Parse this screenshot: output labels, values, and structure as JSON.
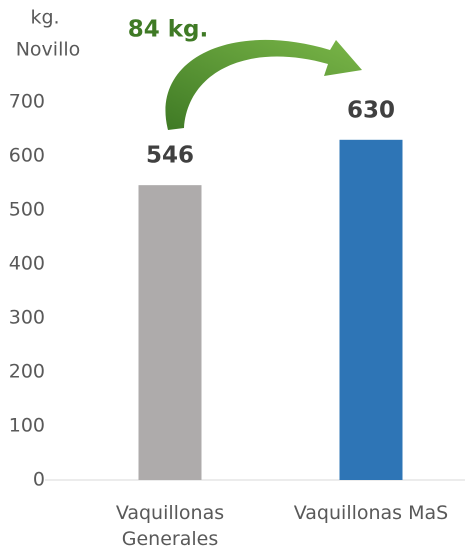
{
  "chart_data": {
    "type": "bar",
    "y_label": [
      "kg.",
      "Novillo"
    ],
    "annotation": "84 kg.",
    "categories": [
      "Vaquillonas Generales",
      "Vaquillonas MaS"
    ],
    "values": [
      546,
      630
    ],
    "colors": [
      "#aeabab",
      "#2e75b6"
    ],
    "ylim": [
      0,
      700
    ],
    "yticks": [
      0,
      100,
      200,
      300,
      400,
      500,
      600,
      700
    ],
    "grid": false
  }
}
